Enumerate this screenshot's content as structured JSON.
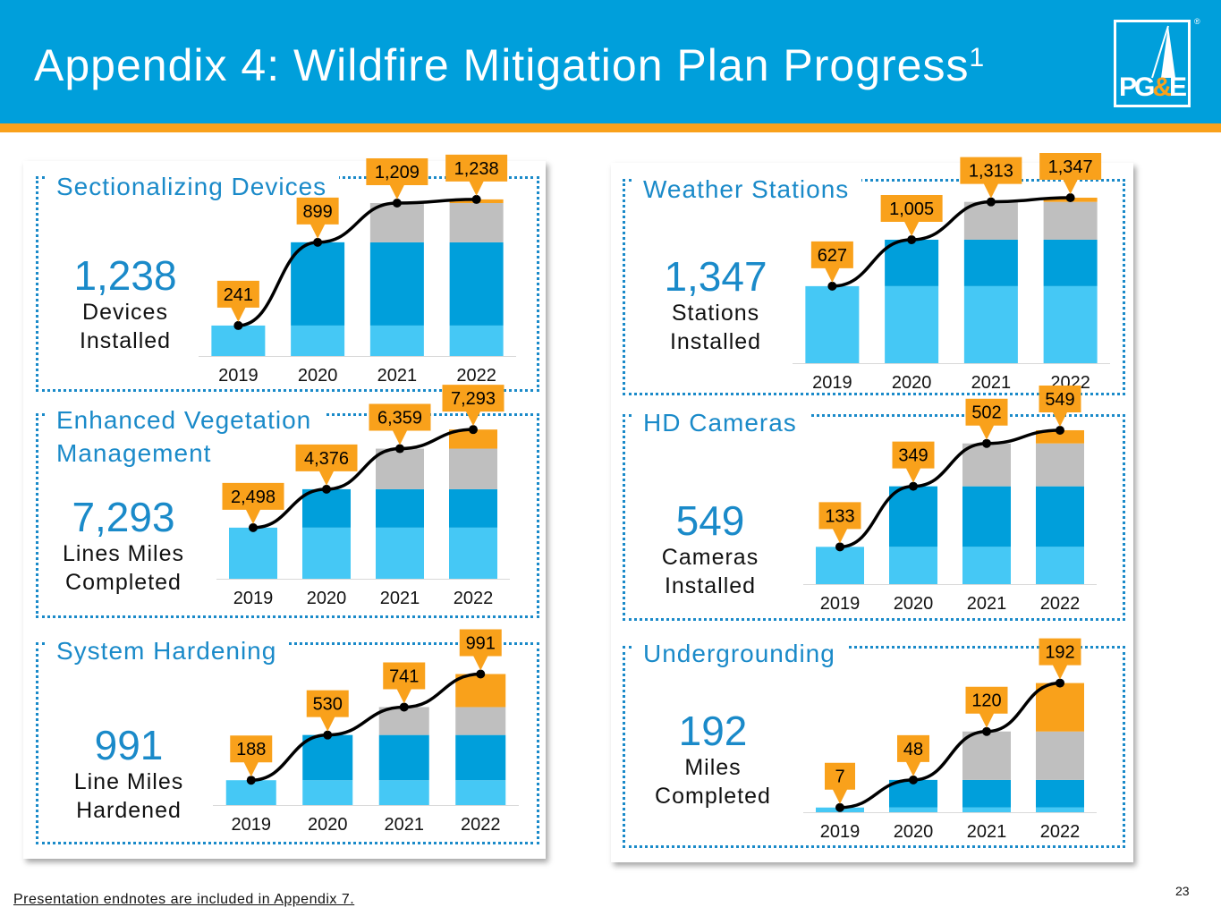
{
  "header": {
    "title": "Appendix 4: Wildfire Mitigation Plan Progress",
    "title_sup": "1",
    "logo_text_pg": "PG",
    "logo_text_amp": "&",
    "logo_text_e": "E",
    "logo_reg": "®"
  },
  "colors": {
    "light_blue": "#45c8f5",
    "blue": "#009fdb",
    "gray": "#bfbfbf",
    "orange": "#f9a11b",
    "accent": "#1a8ac9"
  },
  "panels": [
    {
      "title": "Sectionalizing Devices",
      "stat_value": "1,238",
      "stat_line1": "Devices",
      "stat_line2": "Installed"
    },
    {
      "title": "Weather Stations",
      "stat_value": "1,347",
      "stat_line1": "Stations",
      "stat_line2": "Installed"
    },
    {
      "title": "Enhanced Vegetation",
      "title_line2": "Management",
      "stat_value": "7,293",
      "stat_line1": "Lines Miles",
      "stat_line2": "Completed"
    },
    {
      "title": "HD Cameras",
      "stat_value": "549",
      "stat_line1": "Cameras",
      "stat_line2": "Installed"
    },
    {
      "title": "System Hardening",
      "stat_value": "991",
      "stat_line1": "Line Miles",
      "stat_line2": "Hardened"
    },
    {
      "title": "Undergrounding",
      "stat_value": "192",
      "stat_line1": "Miles",
      "stat_line2": "Completed"
    }
  ],
  "chart_data": [
    {
      "type": "bar",
      "title": "Sectionalizing Devices",
      "categories": [
        "2019",
        "2020",
        "2021",
        "2022"
      ],
      "ylim": [
        0,
        1400
      ],
      "series": [
        {
          "name": "2019",
          "values": [
            241,
            241,
            241,
            241
          ]
        },
        {
          "name": "2020",
          "values": [
            0,
            658,
            658,
            658
          ]
        },
        {
          "name": "2021",
          "values": [
            0,
            0,
            310,
            310
          ]
        },
        {
          "name": "2022",
          "values": [
            0,
            0,
            0,
            29
          ]
        }
      ],
      "line": [
        241,
        899,
        1209,
        1238
      ],
      "labels": [
        "241",
        "899",
        "1,209",
        "1,238"
      ]
    },
    {
      "type": "bar",
      "title": "Weather Stations",
      "categories": [
        "2019",
        "2020",
        "2021",
        "2022"
      ],
      "ylim": [
        0,
        1500
      ],
      "series": [
        {
          "name": "2019",
          "values": [
            627,
            627,
            627,
            627
          ]
        },
        {
          "name": "2020",
          "values": [
            0,
            378,
            378,
            378
          ]
        },
        {
          "name": "2021",
          "values": [
            0,
            0,
            308,
            308
          ]
        },
        {
          "name": "2022",
          "values": [
            0,
            0,
            0,
            34
          ]
        }
      ],
      "line": [
        627,
        1005,
        1313,
        1347
      ],
      "labels": [
        "627",
        "1,005",
        "1,313",
        "1,347"
      ]
    },
    {
      "type": "bar",
      "title": "Enhanced Vegetation Management",
      "categories": [
        "2019",
        "2020",
        "2021",
        "2022"
      ],
      "ylim": [
        0,
        8000
      ],
      "series": [
        {
          "name": "2019",
          "values": [
            2498,
            2498,
            2498,
            2498
          ]
        },
        {
          "name": "2020",
          "values": [
            0,
            1878,
            1878,
            1878
          ]
        },
        {
          "name": "2021",
          "values": [
            0,
            0,
            1983,
            1983
          ]
        },
        {
          "name": "2022",
          "values": [
            0,
            0,
            0,
            934
          ]
        }
      ],
      "line": [
        2498,
        4376,
        6359,
        7293
      ],
      "labels": [
        "2,498",
        "4,376",
        "6,359",
        "7,293"
      ]
    },
    {
      "type": "bar",
      "title": "HD Cameras",
      "categories": [
        "2019",
        "2020",
        "2021",
        "2022"
      ],
      "ylim": [
        0,
        600
      ],
      "series": [
        {
          "name": "2019",
          "values": [
            133,
            133,
            133,
            133
          ]
        },
        {
          "name": "2020",
          "values": [
            0,
            216,
            216,
            216
          ]
        },
        {
          "name": "2021",
          "values": [
            0,
            0,
            153,
            153
          ]
        },
        {
          "name": "2022",
          "values": [
            0,
            0,
            0,
            47
          ]
        }
      ],
      "line": [
        133,
        349,
        502,
        549
      ],
      "labels": [
        "133",
        "349",
        "502",
        "549"
      ]
    },
    {
      "type": "bar",
      "title": "System Hardening",
      "categories": [
        "2019",
        "2020",
        "2021",
        "2022"
      ],
      "ylim": [
        0,
        1150
      ],
      "series": [
        {
          "name": "2019",
          "values": [
            188,
            188,
            188,
            188
          ]
        },
        {
          "name": "2020",
          "values": [
            0,
            342,
            342,
            342
          ]
        },
        {
          "name": "2021",
          "values": [
            0,
            0,
            211,
            211
          ]
        },
        {
          "name": "2022",
          "values": [
            0,
            0,
            0,
            250
          ]
        }
      ],
      "line": [
        188,
        530,
        741,
        991
      ],
      "labels": [
        "188",
        "530",
        "741",
        "991"
      ]
    },
    {
      "type": "bar",
      "title": "Undergrounding",
      "categories": [
        "2019",
        "2020",
        "2021",
        "2022"
      ],
      "ylim": [
        0,
        230
      ],
      "series": [
        {
          "name": "2019",
          "values": [
            7,
            7,
            7,
            7
          ]
        },
        {
          "name": "2020",
          "values": [
            0,
            41,
            41,
            41
          ]
        },
        {
          "name": "2021",
          "values": [
            0,
            0,
            72,
            72
          ]
        },
        {
          "name": "2022",
          "values": [
            0,
            0,
            0,
            72
          ]
        }
      ],
      "line": [
        7,
        48,
        120,
        192
      ],
      "labels": [
        "7",
        "48",
        "120",
        "192"
      ]
    }
  ],
  "footer": {
    "note": "Presentation endnotes are included in Appendix 7.",
    "page_number": "23"
  }
}
